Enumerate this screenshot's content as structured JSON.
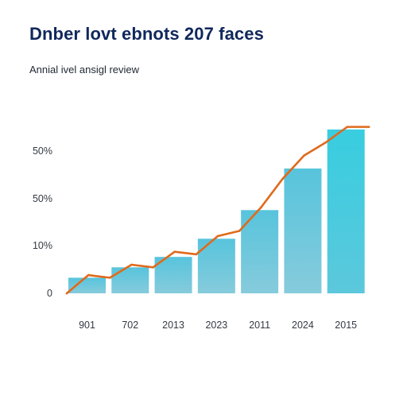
{
  "title": "Dnber lovt ebnots 207 faces",
  "subtitle": "Annial ivel ansigl review",
  "colors": {
    "title": "#10285c",
    "bar_top": "#57c4dc",
    "bar_bottom": "#86cbdc",
    "bar_last": "#38cde0",
    "line": "#e06a1c"
  },
  "chart_data": {
    "type": "bar",
    "title": "Dnber lovt ebnots 207 faces",
    "subtitle": "Annial ivel ansigl review",
    "categories": [
      "901",
      "702",
      "2013",
      "2023",
      "2011",
      "2024",
      "2015"
    ],
    "y_tick_labels": [
      "0",
      "10%",
      "50%",
      "50%"
    ],
    "series": [
      {
        "type": "bar",
        "values": [
          6,
          10,
          14,
          21,
          32,
          48,
          63
        ]
      },
      {
        "type": "line",
        "points": [
          {
            "x": 0,
            "y": 0
          },
          {
            "x": 0.5,
            "y": 7
          },
          {
            "x": 1.0,
            "y": 6
          },
          {
            "x": 1.5,
            "y": 11
          },
          {
            "x": 2.0,
            "y": 10
          },
          {
            "x": 2.5,
            "y": 16
          },
          {
            "x": 3.0,
            "y": 15
          },
          {
            "x": 3.5,
            "y": 22
          },
          {
            "x": 4.0,
            "y": 24
          },
          {
            "x": 4.5,
            "y": 33
          },
          {
            "x": 5.0,
            "y": 44
          },
          {
            "x": 5.5,
            "y": 53
          },
          {
            "x": 6.0,
            "y": 58
          },
          {
            "x": 6.5,
            "y": 64
          },
          {
            "x": 7.0,
            "y": 64
          }
        ]
      }
    ],
    "ylim": [
      0,
      70
    ],
    "grid": false,
    "legend": "none"
  }
}
